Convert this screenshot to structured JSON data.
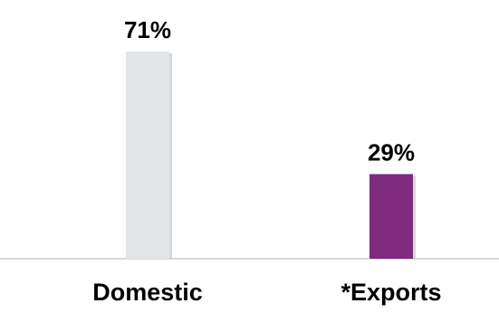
{
  "chart_data": {
    "type": "bar",
    "categories": [
      "Domestic",
      "*Exports"
    ],
    "values": [
      71,
      29
    ],
    "value_labels": [
      "71%",
      "29%"
    ],
    "title": "",
    "xlabel": "",
    "ylabel": "",
    "ylim": [
      0,
      71
    ],
    "grid": false,
    "legend": "none",
    "colors": {
      "bars": [
        "#e1e5e8",
        "#7d2a7f"
      ],
      "shadow": "#b9bcbf",
      "axis": "#c4c4c4",
      "text": "#000000"
    }
  }
}
